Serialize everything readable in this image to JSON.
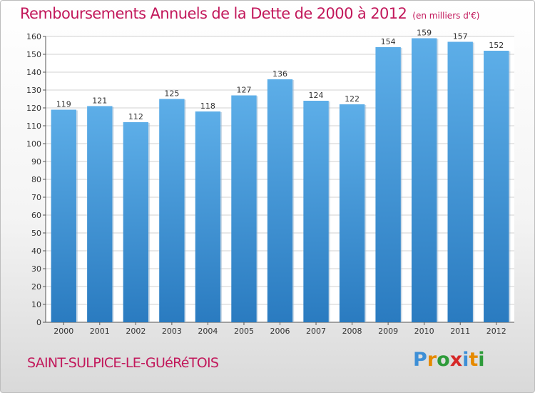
{
  "header": {
    "title": "Remboursements Annuels de la Dette de 2000 à 2012",
    "unit": "(en milliers d'€)"
  },
  "footer": {
    "city": "SAINT-SULPICE-LE-GUéRéTOIS",
    "logo_letters": [
      "P",
      "r",
      "o",
      "x",
      "i",
      "t",
      "i"
    ],
    "logo_colors": [
      "#3d8fd6",
      "#e68a00",
      "#2e9b3a",
      "#d62828",
      "#3d8fd6",
      "#e68a00",
      "#2e9b3a"
    ]
  },
  "colors": {
    "bar_light": "#5daee8",
    "bar_dark": "#2a7bc0",
    "grid": "#d0d0d0",
    "accent": "#c2185b"
  },
  "chart_data": {
    "type": "bar",
    "title": "Remboursements Annuels de la Dette de 2000 à 2012",
    "categories": [
      "2000",
      "2001",
      "2002",
      "2003",
      "2004",
      "2005",
      "2006",
      "2007",
      "2008",
      "2009",
      "2010",
      "2011",
      "2012"
    ],
    "values": [
      119,
      121,
      112,
      125,
      118,
      127,
      136,
      124,
      122,
      154,
      159,
      157,
      152
    ],
    "ylim": [
      0,
      160
    ],
    "ytick_step": 10,
    "grid": true
  }
}
